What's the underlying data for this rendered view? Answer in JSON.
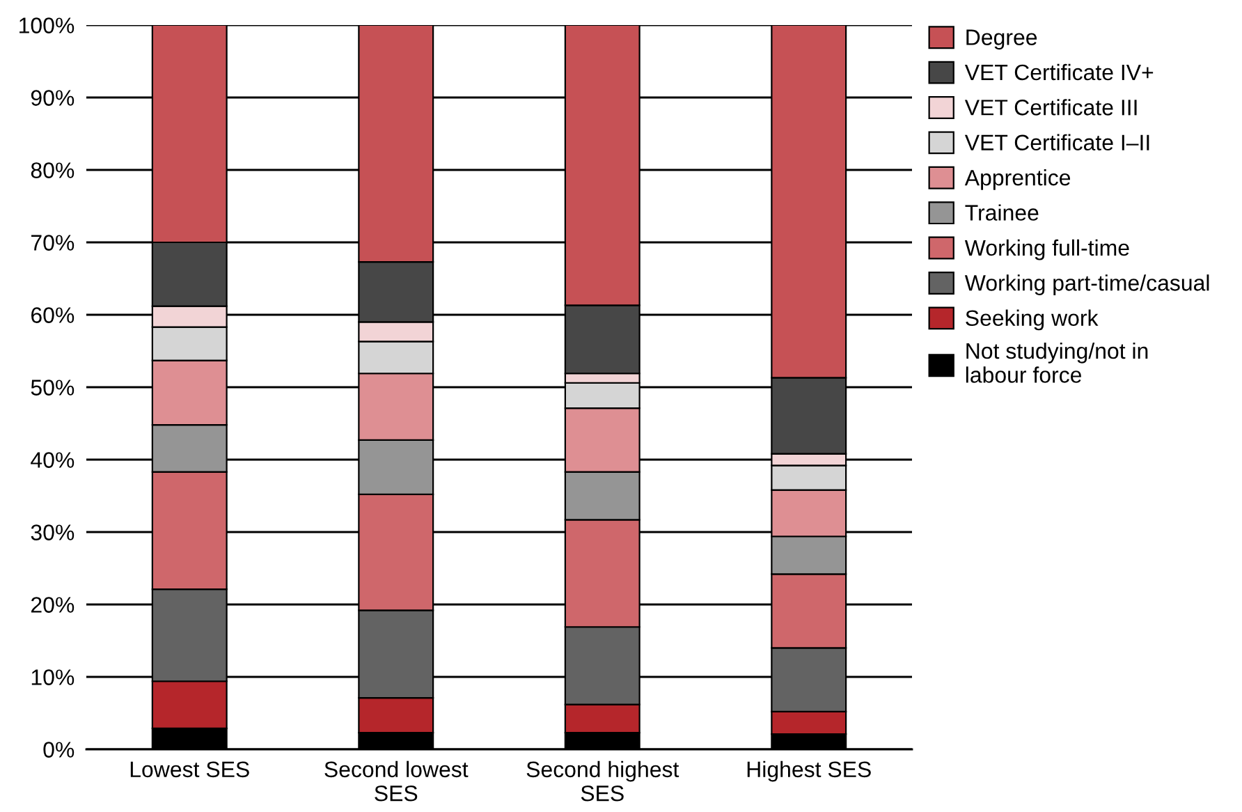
{
  "chart_data": {
    "type": "bar",
    "stacked": true,
    "categories": [
      "Lowest SES",
      "Second lowest SES",
      "Second highest SES",
      "Highest SES"
    ],
    "series": [
      {
        "name": "Not studying/not in labour force",
        "color": "#000000",
        "values": [
          2.9,
          2.3,
          2.3,
          2.1
        ]
      },
      {
        "name": "Seeking work",
        "color": "#b5262b",
        "values": [
          6.5,
          4.8,
          3.9,
          3.1
        ]
      },
      {
        "name": "Working part-time/casual",
        "color": "#636363",
        "values": [
          12.7,
          12.1,
          10.7,
          8.8
        ]
      },
      {
        "name": "Working full-time",
        "color": "#cf676b",
        "values": [
          16.2,
          16.0,
          14.8,
          10.2
        ]
      },
      {
        "name": "Trainee",
        "color": "#959595",
        "values": [
          6.5,
          7.5,
          6.6,
          5.2
        ]
      },
      {
        "name": "Apprentice",
        "color": "#de8f93",
        "values": [
          8.9,
          9.2,
          8.8,
          6.4
        ]
      },
      {
        "name": "VET Certificate I–II",
        "color": "#d5d5d5",
        "values": [
          4.6,
          4.4,
          3.5,
          3.4
        ]
      },
      {
        "name": "VET Certificate III",
        "color": "#f2d4d6",
        "values": [
          2.9,
          2.7,
          1.3,
          1.6
        ]
      },
      {
        "name": "VET Certificate IV+",
        "color": "#474747",
        "values": [
          8.8,
          8.3,
          9.4,
          10.5
        ]
      },
      {
        "name": "Degree",
        "color": "#c65155",
        "values": [
          30.0,
          32.7,
          38.7,
          48.7
        ]
      }
    ],
    "ylim": [
      0,
      100
    ],
    "yticks": [
      {
        "value": 0,
        "label": "0%"
      },
      {
        "value": 10,
        "label": "10%"
      },
      {
        "value": 20,
        "label": "20%"
      },
      {
        "value": 30,
        "label": "30%"
      },
      {
        "value": 40,
        "label": "40%"
      },
      {
        "value": 50,
        "label": "50%"
      },
      {
        "value": 60,
        "label": "60%"
      },
      {
        "value": 70,
        "label": "70%"
      },
      {
        "value": 80,
        "label": "80%"
      },
      {
        "value": 90,
        "label": "90%"
      },
      {
        "value": 100,
        "label": "100%"
      }
    ],
    "grid": "y",
    "legend": "right"
  }
}
